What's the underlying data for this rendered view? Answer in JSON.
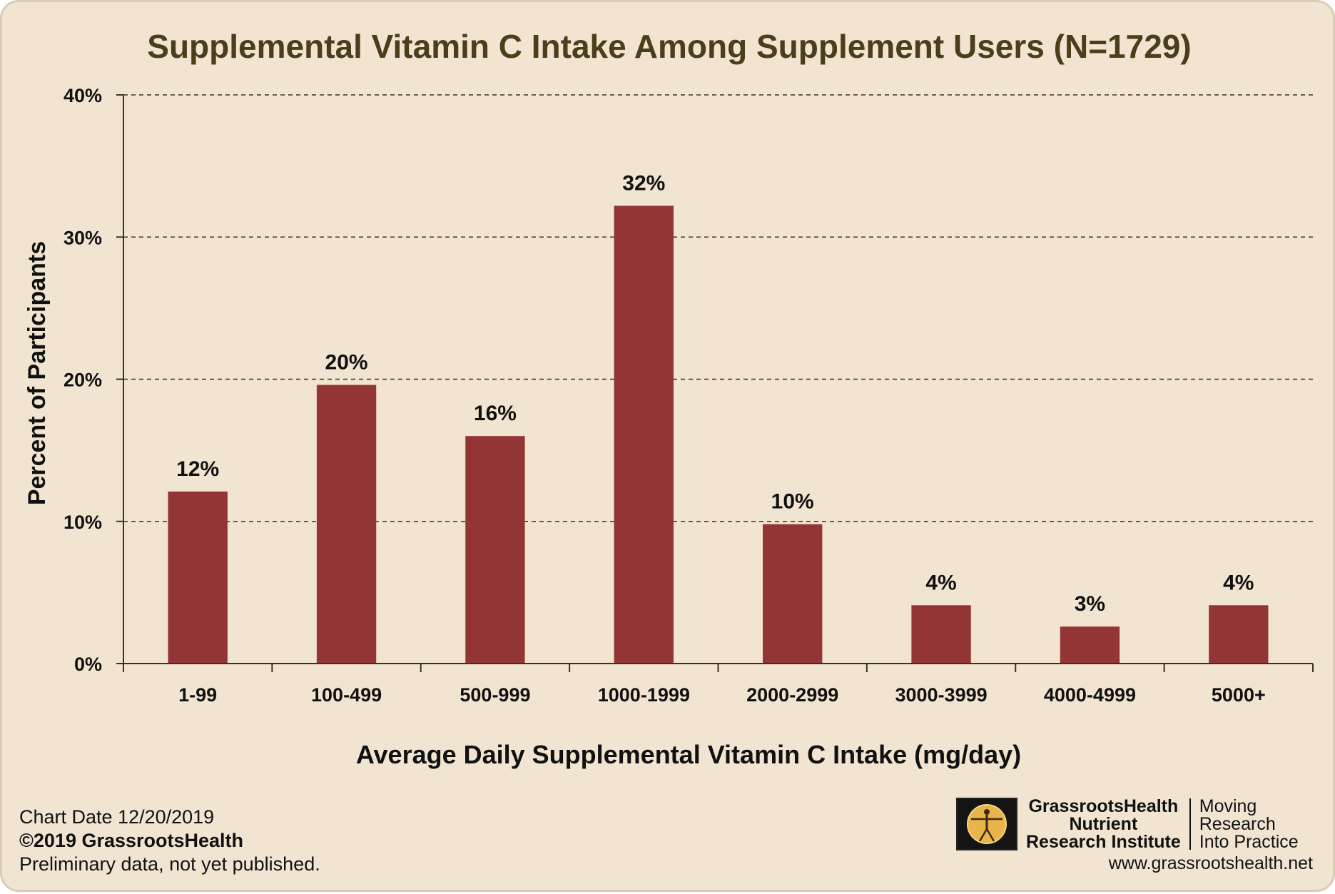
{
  "chart_data": {
    "type": "bar",
    "title": "Supplemental Vitamin C Intake Among Supplement Users (N=1729)",
    "xlabel": "Average Daily Supplemental Vitamin C Intake (mg/day)",
    "ylabel": "Percent of Participants",
    "categories": [
      "1-99",
      "100-499",
      "500-999",
      "1000-1999",
      "2000-2999",
      "3000-3999",
      "4000-4999",
      "5000+"
    ],
    "values": [
      12.1,
      19.6,
      16.0,
      32.2,
      9.8,
      4.1,
      2.6,
      4.1
    ],
    "data_labels": [
      "12%",
      "20%",
      "16%",
      "32%",
      "10%",
      "4%",
      "3%",
      "4%"
    ],
    "ylim": [
      0,
      40
    ],
    "yticks": [
      0,
      10,
      20,
      30,
      40
    ],
    "ytick_labels": [
      "0%",
      "10%",
      "20%",
      "30%",
      "40%"
    ],
    "grid": "horizontal dashed",
    "bar_color": "#933534"
  },
  "footer": {
    "chart_date": "Chart Date 12/20/2019",
    "copyright": "©2019 GrassrootsHealth",
    "note": "Preliminary data, not yet published."
  },
  "brand": {
    "name_line1": "GrassrootsHealth",
    "name_line2": "Nutrient",
    "name_line3": "Research Institute",
    "tag_line1": "Moving",
    "tag_line2": "Research",
    "tag_line3": "Into Practice",
    "url": "www.grassrootshealth.net"
  }
}
